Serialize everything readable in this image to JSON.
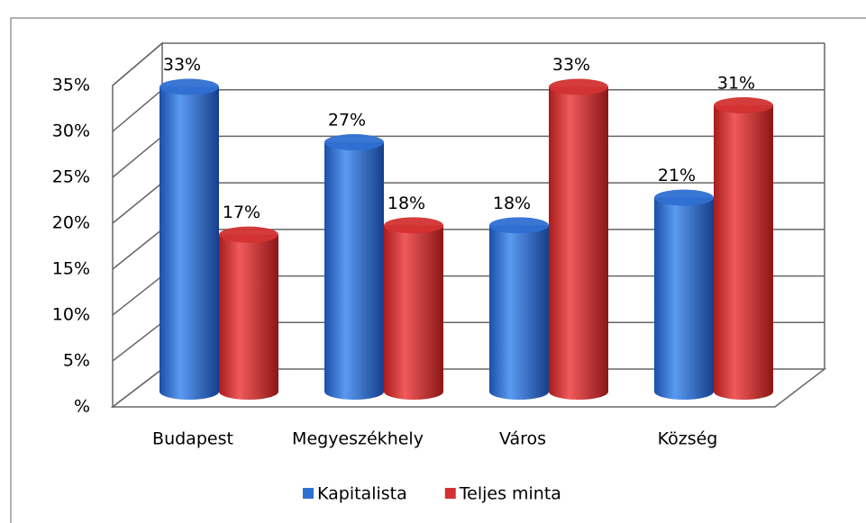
{
  "chart_data": {
    "type": "bar3d",
    "categories": [
      "Budapest",
      "Megyeszékhely",
      "Város",
      "Község"
    ],
    "series": [
      {
        "name": "Kapitalista",
        "color": "#2f6fd2",
        "values": [
          33,
          27,
          18,
          21
        ],
        "value_labels": [
          "33%",
          "27%",
          "18%",
          "21%"
        ]
      },
      {
        "name": "Teljes minta",
        "color": "#d33232",
        "values": [
          17,
          18,
          33,
          31
        ],
        "value_labels": [
          "17%",
          "18%",
          "33%",
          "31%"
        ]
      }
    ],
    "ylim": [
      0,
      35
    ],
    "yticks": [
      {
        "value": 0,
        "label": "%"
      },
      {
        "value": 5,
        "label": "5%"
      },
      {
        "value": 10,
        "label": "10%"
      },
      {
        "value": 15,
        "label": "15%"
      },
      {
        "value": 20,
        "label": "20%"
      },
      {
        "value": 25,
        "label": "25%"
      },
      {
        "value": 30,
        "label": "30%"
      },
      {
        "value": 35,
        "label": "35%"
      }
    ],
    "grid": true,
    "legend": "bottom"
  }
}
